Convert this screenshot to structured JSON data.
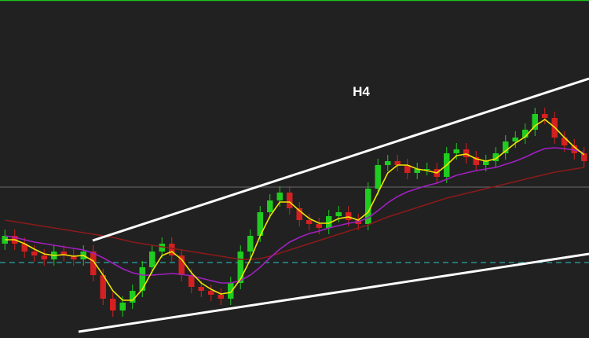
{
  "chart_data": {
    "type": "candlestick",
    "title": "H4",
    "ylim": [
      0,
      43
    ],
    "up_color": "#1fcc1f",
    "down_color": "#d42020",
    "open": [
      12,
      13,
      12,
      11,
      10.5,
      10,
      11,
      10.5,
      10,
      11,
      8,
      5,
      3.5,
      4.5,
      6,
      9,
      11,
      12,
      10.5,
      8,
      6.5,
      6,
      5.5,
      5,
      7,
      11,
      13,
      16,
      17.5,
      18.5,
      16.5,
      15,
      14.5,
      14,
      15.5,
      16,
      15,
      14.5,
      19,
      22,
      22.5,
      22,
      21,
      21.5,
      21.5,
      20.5,
      23.5,
      24,
      23,
      22,
      22.5,
      23.5,
      25,
      25.5,
      26.5,
      28.5,
      28,
      25.5,
      24.5,
      23.5
    ],
    "high": [
      13.8,
      13.8,
      12.8,
      11.8,
      11.3,
      11.8,
      11.8,
      11.3,
      11.8,
      11.8,
      8.8,
      5.8,
      5.3,
      6.8,
      9.8,
      11.8,
      12.8,
      12.8,
      11.3,
      8.8,
      7.3,
      6.8,
      6.3,
      7.8,
      11.8,
      13.8,
      16.8,
      18.3,
      19.3,
      19.3,
      17.3,
      15.8,
      15.3,
      16.3,
      16.8,
      16.8,
      15.8,
      19.8,
      22.8,
      23.3,
      23.3,
      22.8,
      22.3,
      22.3,
      22.3,
      24.3,
      24.8,
      24.8,
      23.8,
      23.3,
      24.3,
      25.8,
      26.3,
      27.3,
      29.3,
      29.3,
      28.8,
      26.3,
      25.3,
      24.3
    ],
    "low": [
      11.2,
      11.2,
      10.2,
      9.7,
      9.2,
      9.2,
      9.7,
      9.2,
      9.2,
      7.2,
      4.2,
      2.7,
      2.7,
      3.7,
      5.2,
      8.2,
      10.2,
      9.7,
      7.2,
      5.7,
      5.2,
      4.7,
      4.2,
      4.2,
      6.2,
      10.2,
      12.2,
      15.2,
      16.7,
      15.7,
      14.2,
      13.7,
      13.2,
      13.2,
      14.7,
      14.2,
      13.7,
      13.7,
      18.2,
      21.2,
      21.2,
      20.2,
      20.2,
      20.7,
      19.7,
      19.7,
      22.7,
      22.2,
      21.2,
      21.2,
      21.7,
      22.7,
      24.2,
      24.7,
      25.7,
      27.2,
      24.7,
      23.7,
      22.7,
      21.7
    ],
    "close": [
      13,
      12,
      11,
      10.5,
      10,
      11,
      10.5,
      10,
      11,
      8,
      5,
      3.5,
      4.5,
      6,
      9,
      11,
      12,
      10.5,
      8,
      6.5,
      6,
      5.5,
      5,
      7,
      11,
      13,
      16,
      17.5,
      18.5,
      16.5,
      15,
      14.5,
      14,
      15.5,
      16,
      15,
      14.5,
      19,
      22,
      22.5,
      22,
      21,
      21.5,
      21.5,
      20.5,
      23.5,
      24,
      23,
      22,
      22.5,
      23.5,
      25,
      25.5,
      26.5,
      28.5,
      28,
      25.5,
      24.5,
      23.5,
      22.5
    ],
    "series": [
      {
        "color": "#8b1a1a",
        "values": [
          15,
          14.8,
          14.6,
          14.4,
          14.2,
          14,
          13.8,
          13.6,
          13.4,
          13.2,
          13,
          12.8,
          12.5,
          12.2,
          12,
          11.8,
          11.6,
          11.4,
          11.2,
          11,
          10.8,
          10.6,
          10.4,
          10.2,
          10,
          10,
          10.1,
          10.4,
          10.8,
          11.2,
          11.6,
          12,
          12.4,
          12.8,
          13.2,
          13.6,
          14,
          14.4,
          14.9,
          15.4,
          15.8,
          16.2,
          16.6,
          17,
          17.4,
          17.8,
          18.1,
          18.4,
          18.7,
          19,
          19.3,
          19.6,
          19.9,
          20.2,
          20.5,
          20.8,
          21.1,
          21.3,
          21.5,
          21.7
        ]
      },
      {
        "color": "#a020c0",
        "values": [
          13,
          12.8,
          12.5,
          12.2,
          12,
          11.8,
          11.6,
          11.4,
          11.2,
          10.8,
          10.2,
          9.5,
          8.8,
          8.3,
          8,
          8,
          8.1,
          8.2,
          8.1,
          7.9,
          7.6,
          7.3,
          7,
          7,
          7.3,
          8,
          9,
          10.2,
          11.3,
          12.2,
          12.8,
          13.3,
          13.6,
          14,
          14.3,
          14.6,
          14.8,
          15.3,
          16.2,
          17.2,
          18,
          18.6,
          19,
          19.4,
          19.7,
          20.2,
          20.7,
          21,
          21.3,
          21.5,
          21.7,
          22.1,
          22.5,
          23,
          23.6,
          24.1,
          24.2,
          24.1,
          23.9,
          23.6
        ]
      },
      {
        "color": "#f2e600",
        "values": [
          12.5,
          12.5,
          12,
          11.3,
          10.7,
          10.5,
          10.6,
          10.4,
          10.5,
          9.8,
          8,
          6,
          4.8,
          4.8,
          6.2,
          8.5,
          10.5,
          11,
          10,
          8.3,
          7,
          6.2,
          5.6,
          5.8,
          7.5,
          10,
          13,
          15.5,
          17.3,
          17.3,
          16.2,
          15.2,
          14.6,
          14.6,
          15.2,
          15.4,
          15,
          16,
          18.5,
          21,
          22,
          22,
          21.5,
          21.3,
          21,
          22,
          23.2,
          23.4,
          22.8,
          22.5,
          22.8,
          23.8,
          24.8,
          25.6,
          27,
          27.8,
          26.8,
          25.5,
          24.3,
          23.3
        ]
      }
    ]
  }
}
